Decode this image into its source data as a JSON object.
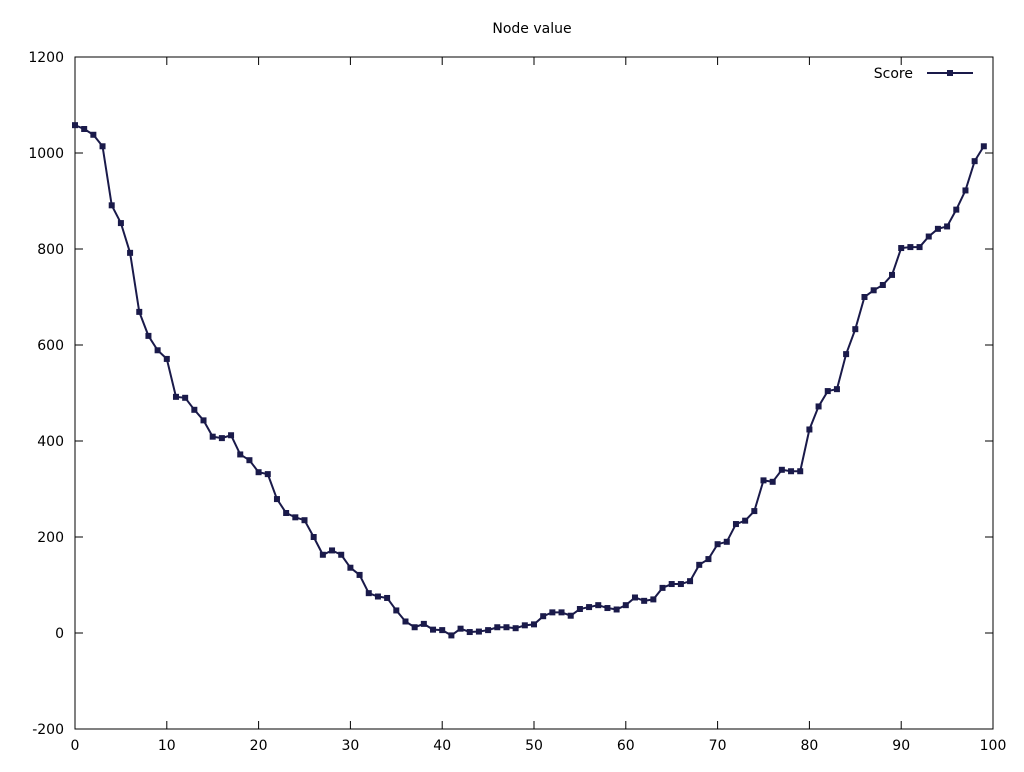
{
  "chart_data": {
    "type": "line",
    "title": "Node value",
    "xlabel": "",
    "ylabel": "",
    "xlim": [
      0,
      100
    ],
    "ylim": [
      -200,
      1200
    ],
    "xticks": [
      0,
      10,
      20,
      30,
      40,
      50,
      60,
      70,
      80,
      90,
      100
    ],
    "xtick_labels": [
      "0",
      "10",
      "20",
      "30",
      "40",
      "50",
      "60",
      "70",
      "80",
      "90",
      "100"
    ],
    "yticks": [
      -200,
      0,
      200,
      400,
      600,
      800,
      1000,
      1200
    ],
    "ytick_labels": [
      "-200",
      "0",
      "200",
      "400",
      "600",
      "800",
      "1000",
      "1200"
    ],
    "grid": false,
    "legend_position": "top-right",
    "series": [
      {
        "name": "Score",
        "color": "#1a1a4a",
        "marker": "square",
        "x": [
          0,
          1,
          2,
          3,
          4,
          5,
          6,
          7,
          8,
          9,
          10,
          11,
          12,
          13,
          14,
          15,
          16,
          17,
          18,
          19,
          20,
          21,
          22,
          23,
          24,
          25,
          26,
          27,
          28,
          29,
          30,
          31,
          32,
          33,
          34,
          35,
          36,
          37,
          38,
          39,
          40,
          41,
          42,
          43,
          44,
          45,
          46,
          47,
          48,
          49,
          50,
          51,
          52,
          53,
          54,
          55,
          56,
          57,
          58,
          59,
          60,
          61,
          62,
          63,
          64,
          65,
          66,
          67,
          68,
          69,
          70,
          71,
          72,
          73,
          74,
          75,
          76,
          77,
          78,
          79,
          80,
          81,
          82,
          83,
          84,
          85,
          86,
          87,
          88,
          89,
          90,
          91,
          92,
          93,
          94,
          95,
          96,
          97,
          98,
          99
        ],
        "y": [
          1058,
          1050,
          1038,
          1014,
          891,
          854,
          792,
          669,
          619,
          589,
          571,
          492,
          490,
          465,
          443,
          409,
          406,
          412,
          372,
          360,
          335,
          331,
          279,
          250,
          241,
          235,
          200,
          163,
          172,
          163,
          136,
          121,
          83,
          76,
          73,
          47,
          24,
          12,
          19,
          7,
          6,
          -5,
          9,
          2,
          3,
          6,
          12,
          12,
          10,
          16,
          18,
          35,
          43,
          43,
          36,
          50,
          54,
          58,
          52,
          49,
          58,
          74,
          67,
          70,
          94,
          102,
          102,
          108,
          142,
          154,
          185,
          190,
          227,
          234,
          254,
          318,
          315,
          340,
          337,
          337,
          424,
          472,
          504,
          508,
          581,
          633,
          700,
          714,
          725,
          746,
          802,
          804,
          804,
          826,
          842,
          847,
          882,
          922,
          983,
          1014
        ]
      }
    ]
  }
}
